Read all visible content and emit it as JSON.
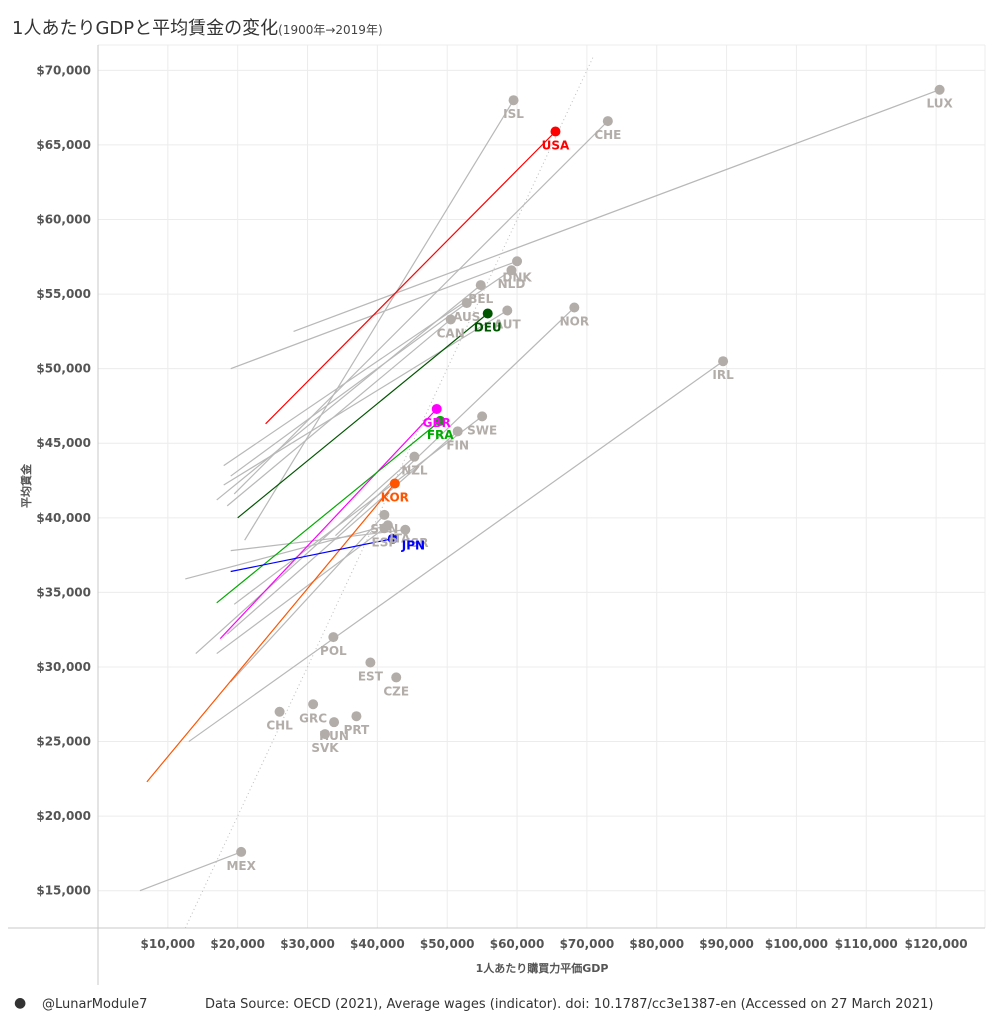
{
  "header": {
    "title": "1人あたりGDPと平均賃金の変化",
    "subtitle": "(1900年→2019年)"
  },
  "footer": {
    "user": "@LunarModule7",
    "icon": "tableau-user-icon",
    "source": "Data Source: OECD (2021), Average wages (indicator). doi: 10.1787/cc3e1387-en (Accessed on 27 March 2021)"
  },
  "colors": {
    "gray": "#b3ada9",
    "gray_line": "#b8b8b8",
    "USA": "#ff0000",
    "GBR": "#ff00ff",
    "FRA": "#00aa00",
    "DEU": "#005500",
    "KOR": "#ff5500",
    "JPN": "#0000ff"
  },
  "chart_data": {
    "type": "scatter",
    "title": "1人あたりGDPと平均賃金の変化",
    "xlabel": "1人あたり購買力平価GDP",
    "ylabel": "平均賃金",
    "xlim": [
      0,
      127000
    ],
    "ylim": [
      12500,
      71700
    ],
    "x_ticks": [
      10000,
      20000,
      30000,
      40000,
      50000,
      60000,
      70000,
      80000,
      90000,
      100000,
      110000,
      120000
    ],
    "x_tick_labels": [
      "$10,000",
      "$20,000",
      "$30,000",
      "$40,000",
      "$50,000",
      "$60,000",
      "$70,000",
      "$80,000",
      "$90,000",
      "$100,000",
      "$110,000",
      "$120,000"
    ],
    "y_ticks": [
      15000,
      20000,
      25000,
      30000,
      35000,
      40000,
      45000,
      50000,
      55000,
      60000,
      65000,
      70000
    ],
    "y_tick_labels": [
      "$15,000",
      "$20,000",
      "$25,000",
      "$30,000",
      "$35,000",
      "$40,000",
      "$45,000",
      "$50,000",
      "$55,000",
      "$60,000",
      "$65,000",
      "$70,000"
    ],
    "reference_line": "y = x (dotted)",
    "series": [
      {
        "name": "ISL",
        "start": [
          21000,
          38500
        ],
        "end": [
          59500,
          68000
        ],
        "color": "gray",
        "label_pos": "below"
      },
      {
        "name": "USA",
        "start": [
          24000,
          46300
        ],
        "end": [
          65500,
          65900
        ],
        "color": "USA",
        "label_pos": "below"
      },
      {
        "name": "CHE",
        "start": [
          19500,
          41600
        ],
        "end": [
          73000,
          66600
        ],
        "color": "gray",
        "label_pos": "below"
      },
      {
        "name": "LUX",
        "start": [
          28000,
          52500
        ],
        "end": [
          120500,
          68700
        ],
        "color": "gray",
        "label_pos": "below"
      },
      {
        "name": "DNK",
        "start": [
          19000,
          50000
        ],
        "end": [
          60000,
          57200
        ],
        "color": "gray",
        "label_pos": "below-left"
      },
      {
        "name": "NLD",
        "start": [
          18000,
          43500
        ],
        "end": [
          59200,
          56600
        ],
        "color": "gray",
        "label_pos": "below"
      },
      {
        "name": "BEL",
        "start": [
          17000,
          41200
        ],
        "end": [
          54800,
          55600
        ],
        "color": "gray",
        "label_pos": "below"
      },
      {
        "name": "AUS",
        "start": [
          19000,
          42800
        ],
        "end": [
          52800,
          54400
        ],
        "color": "gray",
        "label_pos": "below"
      },
      {
        "name": "AUT",
        "start": [
          18000,
          42200
        ],
        "end": [
          58600,
          53900
        ],
        "color": "gray",
        "label_pos": "below"
      },
      {
        "name": "DEU",
        "start": [
          20000,
          40000
        ],
        "end": [
          55800,
          53700
        ],
        "color": "DEU",
        "label_pos": "below"
      },
      {
        "name": "CAN",
        "start": [
          18500,
          40800
        ],
        "end": [
          50500,
          53300
        ],
        "color": "gray",
        "label_pos": "below"
      },
      {
        "name": "NOR",
        "start": [
          34000,
          38800
        ],
        "end": [
          68200,
          54100
        ],
        "color": "gray",
        "label_pos": "below"
      },
      {
        "name": "IRL",
        "start": [
          13000,
          25000
        ],
        "end": [
          89500,
          50500
        ],
        "color": "gray",
        "label_pos": "below"
      },
      {
        "name": "GBR",
        "start": [
          17500,
          31900
        ],
        "end": [
          48500,
          47300
        ],
        "color": "GBR",
        "label_pos": "below"
      },
      {
        "name": "SWE",
        "start": [
          19500,
          34200
        ],
        "end": [
          55000,
          46800
        ],
        "color": "gray",
        "label_pos": "below"
      },
      {
        "name": "FRA",
        "start": [
          17000,
          34300
        ],
        "end": [
          49000,
          46500
        ],
        "color": "FRA",
        "label_pos": "below"
      },
      {
        "name": "FIN",
        "start": [
          18500,
          32200
        ],
        "end": [
          51500,
          45800
        ],
        "color": "gray",
        "label_pos": "below"
      },
      {
        "name": "NZL",
        "start": [
          14000,
          30900
        ],
        "end": [
          45300,
          44100
        ],
        "color": "gray",
        "label_pos": "below"
      },
      {
        "name": "KOR",
        "start": [
          7000,
          22300
        ],
        "end": [
          42500,
          42300
        ],
        "color": "KOR",
        "label_pos": "below"
      },
      {
        "name": "SVN",
        "start": [
          19000,
          29000
        ],
        "end": [
          41000,
          40200
        ],
        "color": "gray",
        "label_pos": "below"
      },
      {
        "name": "ISR",
        "start": [
          19000,
          37800
        ],
        "end": [
          44000,
          39200
        ],
        "color": "gray",
        "label_pos": "below-right"
      },
      {
        "name": "ITA",
        "start": [
          12500,
          35900
        ],
        "end": [
          41500,
          39500
        ],
        "color": "gray",
        "label_pos": "below-right"
      },
      {
        "name": "JPN",
        "start": [
          19000,
          36400
        ],
        "end": [
          42200,
          38600
        ],
        "color": "JPN",
        "label_pos": "right"
      },
      {
        "name": "ESP",
        "start": [
          17000,
          30900
        ],
        "end": [
          41000,
          39300
        ],
        "color": "gray",
        "label_pos": "below"
      },
      {
        "name": "POL",
        "start": null,
        "end": [
          33700,
          32000
        ],
        "color": "gray",
        "label_pos": "below"
      },
      {
        "name": "EST",
        "start": null,
        "end": [
          39000,
          30300
        ],
        "color": "gray",
        "label_pos": "below"
      },
      {
        "name": "CZE",
        "start": null,
        "end": [
          42700,
          29300
        ],
        "color": "gray",
        "label_pos": "below"
      },
      {
        "name": "CHL",
        "start": null,
        "end": [
          26000,
          27000
        ],
        "color": "gray",
        "label_pos": "below"
      },
      {
        "name": "GRC",
        "start": null,
        "end": [
          30800,
          27500
        ],
        "color": "gray",
        "label_pos": "below"
      },
      {
        "name": "PRT",
        "start": null,
        "end": [
          37000,
          26700
        ],
        "color": "gray",
        "label_pos": "below"
      },
      {
        "name": "HUN",
        "start": null,
        "end": [
          33800,
          26300
        ],
        "color": "gray",
        "label_pos": "below"
      },
      {
        "name": "SVK",
        "start": null,
        "end": [
          32500,
          25500
        ],
        "color": "gray",
        "label_pos": "below"
      },
      {
        "name": "MEX",
        "start": [
          6000,
          15000
        ],
        "end": [
          20500,
          17600
        ],
        "color": "gray",
        "label_pos": "below"
      }
    ]
  }
}
